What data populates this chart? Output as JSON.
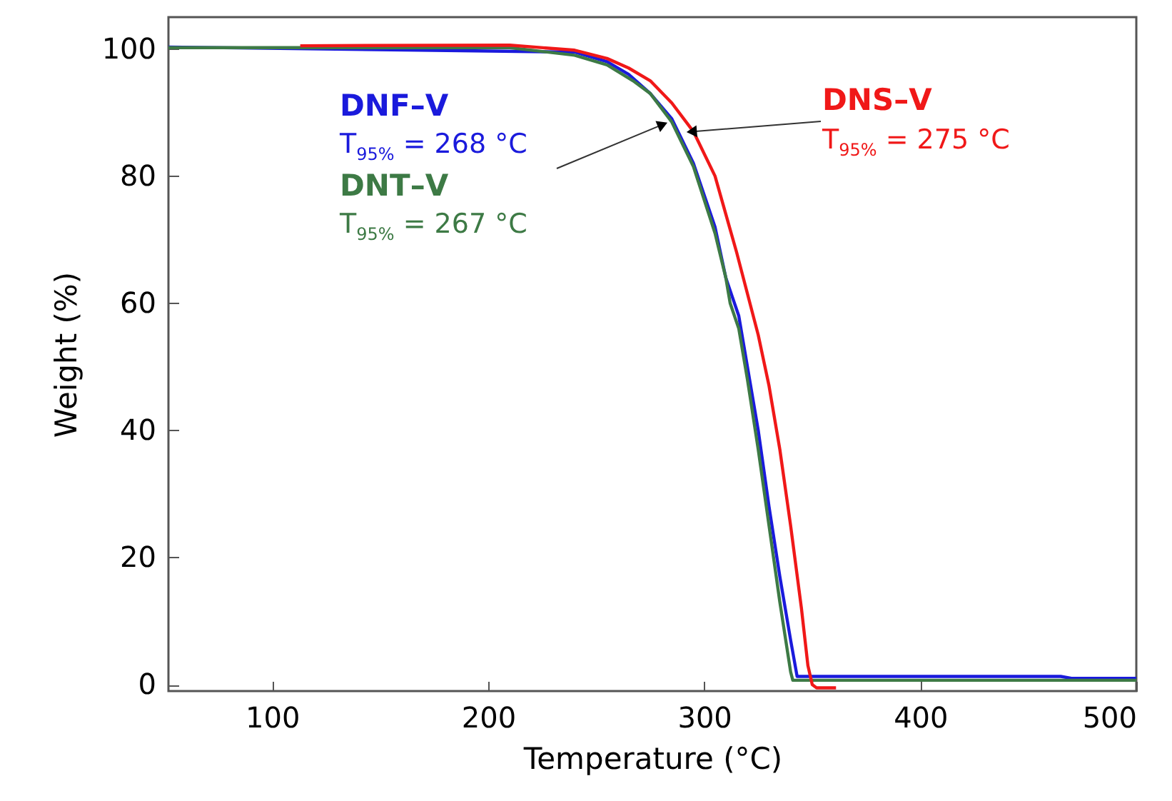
{
  "chart_data": {
    "type": "line",
    "xlabel": "Temperature (°C)",
    "ylabel": "Weight (%)",
    "xlim": [
      52,
      500
    ],
    "ylim": [
      -1,
      105
    ],
    "xticks": [
      100,
      200,
      300,
      400,
      500
    ],
    "yticks": [
      0,
      20,
      40,
      60,
      80,
      100
    ],
    "grid": false,
    "line_style": "solid",
    "annotations": [
      {
        "text": "T$_{95%}$ = 268 °C",
        "x": 280,
        "y": 88
      },
      "T$_{95%}$ = 267 °C",
      {
        "text": "T$_{95%}$ = 275 °C",
        "x": 295,
        "y": 87
      }
    ],
    "series": [
      {
        "name": "DNF–V",
        "color": "#1a1adc",
        "x": [
          52,
          240,
          255,
          265,
          275,
          285,
          295,
          305,
          310,
          313,
          316,
          320,
          325,
          330,
          335,
          340,
          343,
          350,
          465,
          470,
          500
        ],
        "values": [
          100.3,
          99.5,
          98,
          96,
          93,
          89,
          82,
          72,
          64,
          61,
          58,
          50,
          40,
          28,
          17,
          7,
          1.3,
          1.3,
          1.3,
          1.0,
          1.0
        ]
      },
      {
        "name": "DNT–V",
        "color": "#3d7a45",
        "x": [
          52,
          210,
          240,
          255,
          267,
          275,
          285,
          295,
          305,
          310,
          312,
          316,
          320,
          325,
          330,
          335,
          340,
          341,
          500
        ],
        "values": [
          100.2,
          100.2,
          99,
          97.5,
          95,
          93,
          88.5,
          81.5,
          71,
          64,
          60,
          56,
          48,
          37,
          25,
          13,
          2,
          0.7,
          0.7
        ]
      },
      {
        "name": "DNS–V",
        "color": "#f01818",
        "x": [
          113,
          210,
          240,
          255,
          265,
          275,
          285,
          295,
          305,
          315,
          325,
          330,
          335,
          340,
          345,
          348,
          350,
          352,
          361
        ],
        "values": [
          100.5,
          100.6,
          99.8,
          98.5,
          97,
          95,
          91.5,
          87,
          80,
          68,
          55,
          47,
          37,
          25,
          12,
          3,
          0,
          -0.5,
          -0.5
        ]
      }
    ]
  }
}
